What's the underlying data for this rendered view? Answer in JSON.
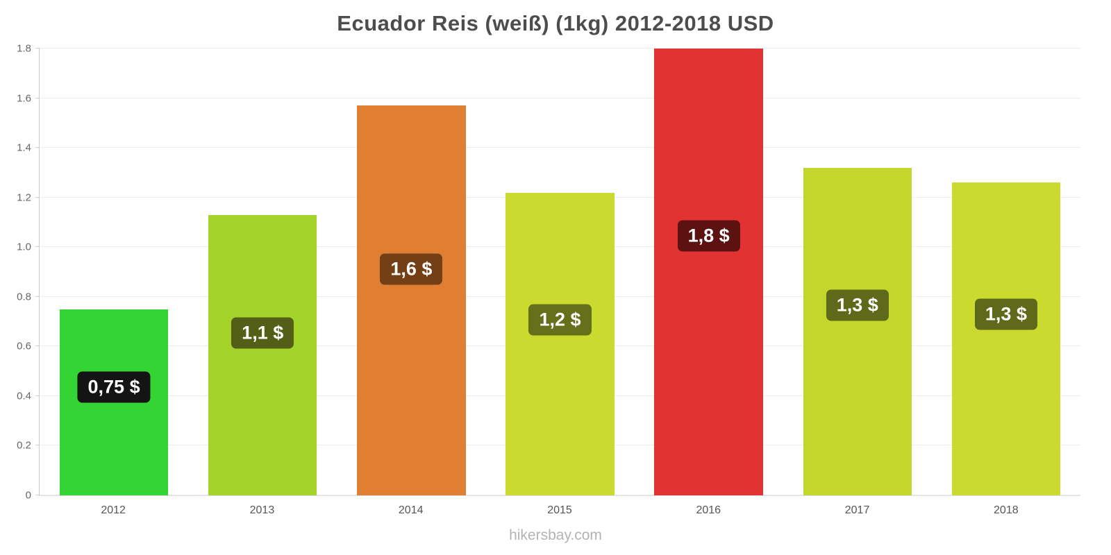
{
  "title": "Ecuador Reis (weiß) (1kg) 2012-2018 USD",
  "footer": "hikersbay.com",
  "chart_data": {
    "type": "bar",
    "title": "Ecuador Reis (weiß) (1kg) 2012-2018 USD",
    "categories": [
      "2012",
      "2013",
      "2014",
      "2015",
      "2016",
      "2017",
      "2018"
    ],
    "values": [
      0.75,
      1.13,
      1.57,
      1.22,
      1.8,
      1.32,
      1.26
    ],
    "labels": [
      "0,75 $",
      "1,1 $",
      "1,6 $",
      "1,2 $",
      "1,8 $",
      "1,3 $",
      "1,3 $"
    ],
    "bar_colors": [
      "#35d435",
      "#a4d32a",
      "#e07e32",
      "#cbda2e",
      "#e13331",
      "#c3d62c",
      "#cbda2e"
    ],
    "label_bg_colors": [
      "#141414",
      "#535f17",
      "#753f16",
      "#666f1a",
      "#5d1212",
      "#5e691a",
      "#5e691a"
    ],
    "xlabel": "",
    "ylabel": "",
    "ylim": [
      0,
      1.8
    ],
    "yticks": [
      0,
      0.2,
      0.4,
      0.6,
      0.8,
      1.0,
      1.2,
      1.4,
      1.6,
      1.8
    ],
    "ytick_labels": [
      "0",
      "0.2",
      "0.4",
      "0.6",
      "0.8",
      "1.0",
      "1.2",
      "1.4",
      "1.6",
      "1.8"
    ],
    "grid": true,
    "legend": false,
    "currency": "USD"
  }
}
